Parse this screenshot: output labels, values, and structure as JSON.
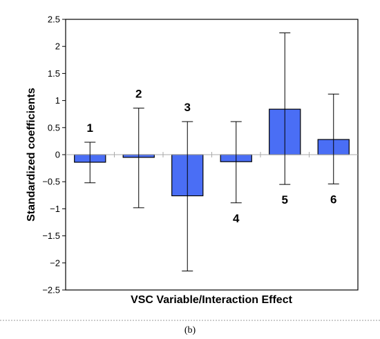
{
  "caption": "(b)",
  "chart_data": {
    "type": "bar",
    "xlabel": "VSC Variable/Interaction Effect",
    "ylabel": "Standardized coefficients",
    "ylim": [
      -2.5,
      2.5
    ],
    "yticks": [
      -2.5,
      -2,
      -1.5,
      -1,
      -0.5,
      0,
      0.5,
      1,
      1.5,
      2,
      2.5
    ],
    "ytick_labels": [
      "−2.5",
      "−2",
      "−1.5",
      "−1",
      "−0.5",
      "0",
      "0.5",
      "1",
      "1.5",
      "2",
      "2.5"
    ],
    "grid": false,
    "categories": [
      "1",
      "2",
      "3",
      "4",
      "5",
      "6"
    ],
    "values": [
      -0.14,
      -0.05,
      -0.76,
      -0.13,
      0.84,
      0.28
    ],
    "error_low": [
      -0.52,
      -0.98,
      -2.15,
      -0.89,
      -0.55,
      -0.54
    ],
    "error_high": [
      0.23,
      0.86,
      0.61,
      0.61,
      2.25,
      1.12
    ],
    "bar_color": "#4a6ef5",
    "bar_edge_color": "#000000"
  }
}
